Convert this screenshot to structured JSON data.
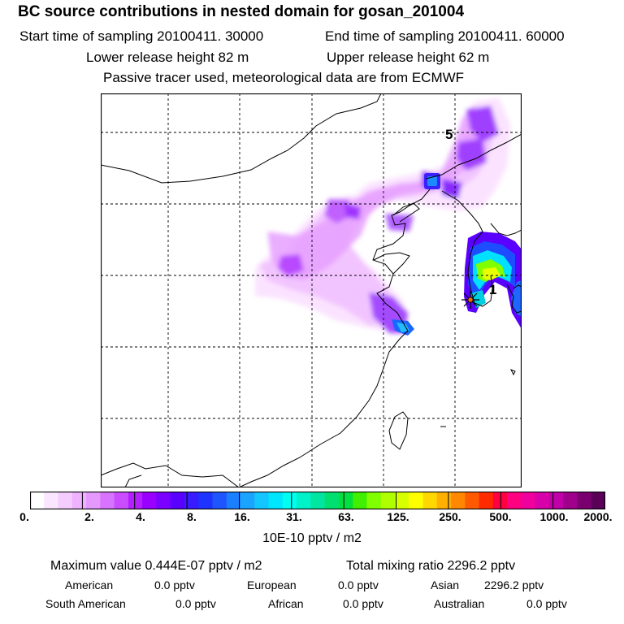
{
  "header": {
    "title": "BC  source contributions in nested domain for gosan_201004",
    "start_time": "Start time of sampling 20100411. 30000",
    "end_time": "End time of sampling 20100411. 60000",
    "lower_release": "Lower release height   82 m",
    "upper_release": "Upper release height   62 m",
    "tracer_note": "Passive tracer used, meteorological data are from ECMWF"
  },
  "map": {
    "labels": [
      "5",
      "1"
    ],
    "release_marker": "star-marker-icon"
  },
  "colorbar": {
    "ticks": [
      "0.",
      "2.",
      "4.",
      "8.",
      "16.",
      "31.",
      "63.",
      "125.",
      "250.",
      "500.",
      "1000.",
      "2000."
    ],
    "colors": [
      "#ffffff",
      "#fbe6ff",
      "#f5ccff",
      "#eeb2ff",
      "#e599ff",
      "#d873ff",
      "#c94dff",
      "#b320ff",
      "#9900ff",
      "#7a00ff",
      "#5a00ff",
      "#3a1aff",
      "#1f33ff",
      "#1f55ff",
      "#1a80ff",
      "#1aa3ff",
      "#14c6ff",
      "#00e6ff",
      "#00fff0",
      "#00f2c8",
      "#00e6a0",
      "#00e070",
      "#00e040",
      "#40f000",
      "#80ff00",
      "#b0ff00",
      "#d8ff00",
      "#ffff00",
      "#ffd800",
      "#ffb000",
      "#ff8800",
      "#ff5a00",
      "#ff2a00",
      "#ff0040",
      "#ff0080",
      "#f0009c",
      "#d800a8",
      "#c000a8",
      "#a0008c",
      "#7a0070",
      "#5a0058"
    ],
    "units": "10E-10 pptv / m2"
  },
  "summary": {
    "max_value": "Maximum value  0.444E-07 pptv / m2",
    "total_mixing": "Total mixing ratio      2296.2 pptv"
  },
  "regions": [
    {
      "name": "American",
      "value": "0.0 pptv"
    },
    {
      "name": "European",
      "value": "0.0 pptv"
    },
    {
      "name": "Asian",
      "value": "2296.2 pptv"
    },
    {
      "name": "South American",
      "value": "0.0 pptv"
    },
    {
      "name": "African",
      "value": "0.0 pptv"
    },
    {
      "name": "Australian",
      "value": "0.0 pptv"
    }
  ]
}
